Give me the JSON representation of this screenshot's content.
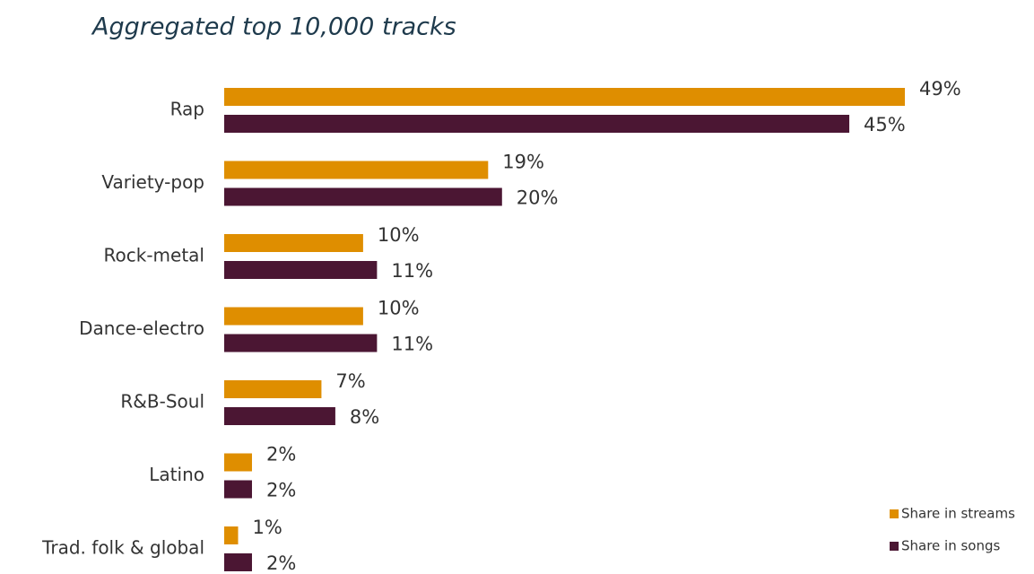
{
  "chart_data": {
    "type": "hbar",
    "title": "Aggregated top 10,000 tracks",
    "categories": [
      "Rap",
      "Variety-pop",
      "Rock-metal",
      "Dance-electro",
      "R&B-Soul",
      "Latino",
      "Trad. folk & global"
    ],
    "series": [
      {
        "name": "Share in streams",
        "color": "#df8e00",
        "values": [
          49,
          19,
          10,
          10,
          7,
          2,
          1
        ],
        "value_labels": [
          "49%",
          "19%",
          "10%",
          "10%",
          "7%",
          "2%",
          "1%"
        ]
      },
      {
        "name": "Share in songs",
        "color": "#4b1633",
        "values": [
          45,
          20,
          11,
          11,
          8,
          2,
          2
        ],
        "value_labels": [
          "45%",
          "20%",
          "11%",
          "11%",
          "8%",
          "2%",
          "2%"
        ]
      }
    ],
    "legend": "bottom-right"
  }
}
